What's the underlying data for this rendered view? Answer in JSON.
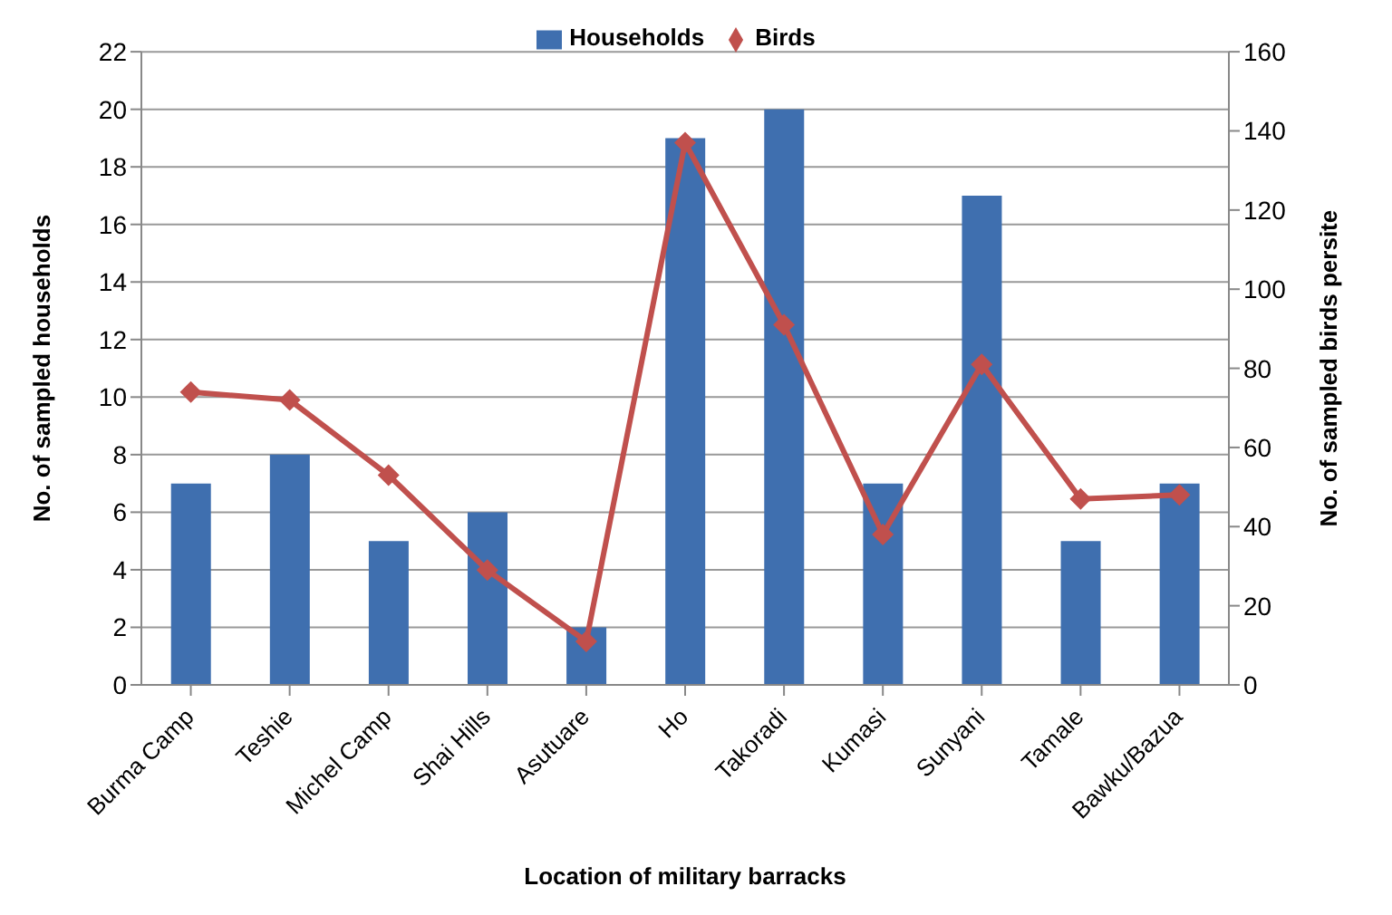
{
  "chart_data": {
    "type": "bar",
    "xlabel": "Location of military barracks",
    "ylabel": "No. of sampled households",
    "y2label": "No. of sampled birds persite",
    "categories": [
      "Burma Camp",
      "Teshie",
      "Michel Camp",
      "Shai Hills",
      "Asutuare",
      "Ho",
      "Takoradi",
      "Kumasi",
      "Sunyani",
      "Tamale",
      "Bawku/Bazua"
    ],
    "series": [
      {
        "name": "Households",
        "color": "#3f6faf",
        "values": [
          7,
          8,
          5,
          6,
          2,
          19,
          20,
          7,
          17,
          5,
          7
        ]
      },
      {
        "name": "Birds",
        "type": "line",
        "axis": "y2",
        "color": "#c0504d",
        "marker": "diamond",
        "values": [
          74,
          72,
          53,
          29,
          11,
          137,
          91,
          38,
          81,
          47,
          48
        ]
      }
    ],
    "ylim": [
      0,
      22
    ],
    "yticks": [
      0,
      2,
      4,
      6,
      8,
      10,
      12,
      14,
      16,
      18,
      20,
      22
    ],
    "y2lim": [
      0,
      160
    ],
    "y2ticks": [
      0,
      20,
      40,
      60,
      80,
      100,
      120,
      140,
      160
    ],
    "grid": "y",
    "legend": "top"
  }
}
